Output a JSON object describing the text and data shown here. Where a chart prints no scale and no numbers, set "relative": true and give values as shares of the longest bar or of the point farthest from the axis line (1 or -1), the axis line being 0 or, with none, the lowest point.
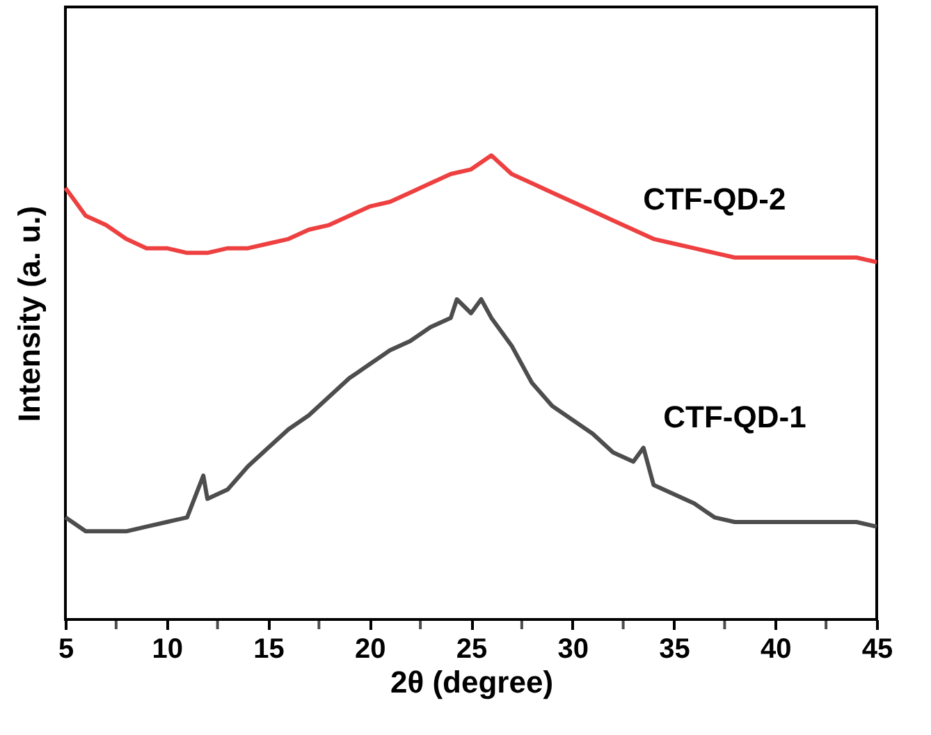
{
  "chart_data": {
    "type": "line",
    "xlabel": "2θ (degree)",
    "ylabel": "Intensity (a. u.)",
    "relative": true,
    "legend": false,
    "xlim": [
      5,
      45
    ],
    "xticks": [
      5,
      {
        "value": 7.5,
        "label": null
      },
      10,
      {
        "value": 12.5,
        "label": null
      },
      15,
      {
        "value": 17.5,
        "label": null
      },
      20,
      {
        "value": 22.5,
        "label": null
      },
      25,
      {
        "value": 27.5,
        "label": null
      },
      30,
      {
        "value": 32.5,
        "label": null
      },
      35,
      {
        "value": 37.5,
        "label": null
      },
      40,
      {
        "value": 42.5,
        "label": null
      },
      45
    ],
    "series": [
      {
        "name": "CTF-QD-2",
        "color": "#ee4040",
        "x": [
          5,
          6,
          7,
          8,
          9,
          10,
          11,
          12,
          13,
          14,
          15,
          16,
          17,
          18,
          19,
          20,
          21,
          22,
          23,
          24,
          25,
          26,
          27,
          28,
          29,
          30,
          31,
          32,
          33,
          34,
          35,
          36,
          37,
          38,
          39,
          40,
          42,
          44,
          45
        ],
        "values": [
          0.93,
          0.87,
          0.85,
          0.82,
          0.8,
          0.8,
          0.79,
          0.79,
          0.8,
          0.8,
          0.81,
          0.82,
          0.84,
          0.85,
          0.87,
          0.89,
          0.9,
          0.92,
          0.94,
          0.96,
          0.97,
          1.0,
          0.96,
          0.94,
          0.92,
          0.9,
          0.88,
          0.86,
          0.84,
          0.82,
          0.81,
          0.8,
          0.79,
          0.78,
          0.78,
          0.78,
          0.78,
          0.78,
          0.77
        ]
      },
      {
        "name": "CTF-QD-1",
        "color": "#4d4d4d",
        "x": [
          5,
          6,
          7,
          8,
          9,
          10,
          11,
          11.8,
          12,
          13,
          14,
          15,
          16,
          17,
          18,
          19,
          20,
          21,
          22,
          23,
          24,
          24.3,
          25,
          25.5,
          26,
          27,
          28,
          29,
          30,
          31,
          32,
          33,
          33.5,
          34,
          35,
          36,
          37,
          38,
          39,
          40,
          41,
          42,
          43,
          44,
          45
        ],
        "values": [
          0.22,
          0.19,
          0.19,
          0.19,
          0.2,
          0.21,
          0.22,
          0.31,
          0.26,
          0.28,
          0.33,
          0.37,
          0.41,
          0.44,
          0.48,
          0.52,
          0.55,
          0.58,
          0.6,
          0.63,
          0.65,
          0.69,
          0.66,
          0.69,
          0.65,
          0.59,
          0.51,
          0.46,
          0.43,
          0.4,
          0.36,
          0.34,
          0.37,
          0.29,
          0.27,
          0.25,
          0.22,
          0.21,
          0.21,
          0.21,
          0.21,
          0.21,
          0.21,
          0.21,
          0.2
        ]
      }
    ]
  }
}
